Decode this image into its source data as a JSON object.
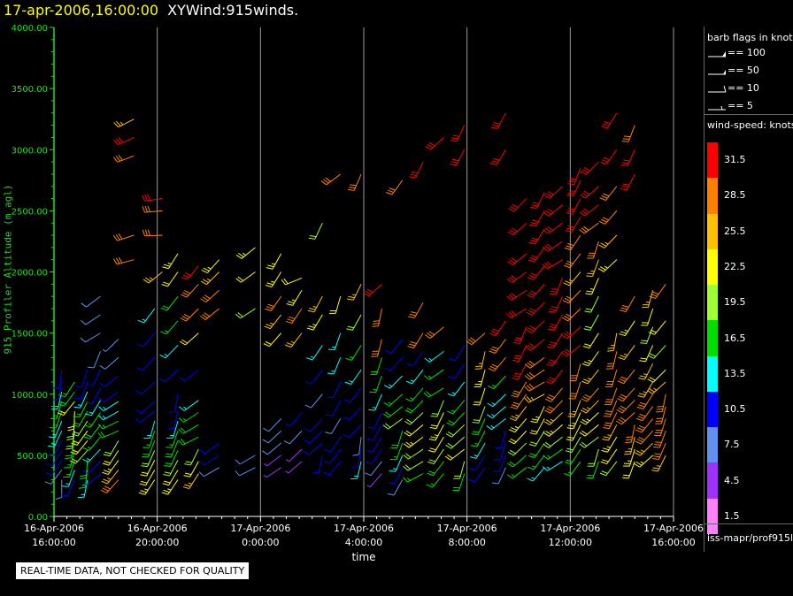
{
  "header": {
    "date": "17-apr-2006,16:00:00",
    "name": "XYWind:915winds."
  },
  "legend": {
    "flags_title": "barb flags in knots",
    "flags": [
      "== 100",
      "== 50",
      "== 10",
      "== 5"
    ],
    "speed_title": "wind-speed: knots",
    "speed_bins": [
      {
        "label": "31.5",
        "color": "#ff0000"
      },
      {
        "label": "28.5",
        "color": "#ff8000"
      },
      {
        "label": "25.5",
        "color": "#ffc000"
      },
      {
        "label": "22.5",
        "color": "#ffff00"
      },
      {
        "label": "19.5",
        "color": "#a0ff30"
      },
      {
        "label": "16.5",
        "color": "#00e000"
      },
      {
        "label": "13.5",
        "color": "#00ffff"
      },
      {
        "label": "10.5",
        "color": "#0000ff"
      },
      {
        "label": "7.5",
        "color": "#6090f0"
      },
      {
        "label": "4.5",
        "color": "#a030ff"
      },
      {
        "label": "1.5",
        "color": "#ff80ff"
      }
    ],
    "source": "iss-mapr/prof915l"
  },
  "notice": "REAL-TIME DATA, NOT CHECKED FOR QUALITY",
  "chart_data": {
    "type": "scatter",
    "title": "17-apr-2006,16:00:00  XYWind:915winds.",
    "xlabel": "time",
    "ylabel": "915 Profiler Altitude (m agl)",
    "ylim": [
      0,
      4000
    ],
    "yticks": [
      "0.00",
      "500.00",
      "1000.00",
      "1500.00",
      "2000.00",
      "2500.00",
      "3000.00",
      "3500.00",
      "4000.00"
    ],
    "xticks": [
      {
        "h": 0,
        "l1": "16-Apr-2006",
        "l2": "16:00:00"
      },
      {
        "h": 4,
        "l1": "16-Apr-2006",
        "l2": "20:00:00"
      },
      {
        "h": 8,
        "l1": "17-Apr-2006",
        "l2": "0:00:00"
      },
      {
        "h": 12,
        "l1": "17-Apr-2006",
        "l2": "4:00:00"
      },
      {
        "h": 16,
        "l1": "17-Apr-2006",
        "l2": "8:00:00"
      },
      {
        "h": 20,
        "l1": "17-Apr-2006",
        "l2": "12:00:00"
      },
      {
        "h": 24,
        "l1": "17-Apr-2006",
        "l2": "16:00:00"
      }
    ],
    "grid": "vertical",
    "series": [
      {
        "x": 0.3,
        "y": [
          300,
          380,
          460,
          540,
          620,
          700,
          780,
          860,
          940,
          1020,
          1100,
          1200
        ],
        "spd": [
          9,
          9,
          10,
          12,
          12,
          14,
          14,
          16,
          16,
          14,
          12,
          10
        ],
        "dir": 200
      },
      {
        "x": 0.8,
        "y": [
          300,
          380,
          460,
          540,
          620,
          700,
          780,
          860,
          940,
          1020,
          1100
        ],
        "spd": [
          12,
          14,
          16,
          16,
          18,
          20,
          20,
          22,
          22,
          18,
          16
        ],
        "dir": 200
      },
      {
        "x": 1.3,
        "y": [
          300,
          380,
          460,
          540,
          620,
          700,
          780,
          860,
          940,
          1020,
          1100,
          1200
        ],
        "spd": [
          14,
          16,
          18,
          20,
          22,
          22,
          20,
          18,
          16,
          14,
          12,
          10
        ],
        "dir": 205
      },
      {
        "x": 1.8,
        "y": [
          350,
          450,
          550,
          650,
          750,
          850,
          950,
          1050,
          1200,
          1350,
          1500,
          1650,
          1800
        ],
        "spd": [
          10,
          12,
          14,
          16,
          18,
          16,
          14,
          12,
          10,
          9,
          8,
          9,
          8
        ],
        "dir": 220
      },
      {
        "x": 2.5,
        "y": [
          300,
          380,
          460,
          540,
          620,
          700,
          780,
          860,
          940,
          1020,
          1150,
          1300,
          1450
        ],
        "spd": [
          28,
          26,
          24,
          22,
          20,
          18,
          17,
          15,
          13,
          11,
          10,
          8,
          7
        ],
        "dir": 230
      },
      {
        "x": 3.1,
        "y": [
          2100,
          2300,
          2950,
          3100,
          3250
        ],
        "spd": [
          28,
          29,
          30,
          31,
          27
        ],
        "dir": 240
      },
      {
        "x": 3.9,
        "y": [
          300,
          380,
          460,
          540,
          620,
          700,
          780,
          860,
          940,
          1100,
          1300,
          1500,
          1700
        ],
        "spd": [
          24,
          22,
          22,
          20,
          18,
          16,
          14,
          12,
          10,
          10,
          11,
          12,
          13
        ],
        "dir": 215
      },
      {
        "x": 4.2,
        "y": [
          2000,
          2300,
          2500,
          2600
        ],
        "spd": [
          26,
          28,
          30,
          31
        ],
        "dir": 250
      },
      {
        "x": 4.8,
        "y": [
          300,
          380,
          460,
          540,
          620,
          700,
          780,
          860,
          1000,
          1200,
          1400,
          1600,
          1800,
          2000,
          2150
        ],
        "spd": [
          24,
          22,
          20,
          18,
          18,
          16,
          14,
          12,
          10,
          12,
          14,
          16,
          18,
          22,
          24
        ],
        "dir": 210
      },
      {
        "x": 5.6,
        "y": [
          350,
          450,
          550,
          650,
          750,
          850,
          950,
          1200,
          1500,
          1700,
          1900,
          2050
        ],
        "spd": [
          25,
          22,
          20,
          18,
          18,
          16,
          14,
          12,
          22,
          28,
          30,
          31
        ],
        "dir": 225
      },
      {
        "x": 6.4,
        "y": [
          400,
          500,
          600,
          1700,
          1850,
          2000,
          2100
        ],
        "spd": [
          9,
          10,
          12,
          30,
          30,
          26,
          24
        ],
        "dir": 230
      },
      {
        "x": 7.8,
        "y": [
          400,
          500,
          1700,
          2000,
          2200
        ],
        "spd": [
          8,
          9,
          20,
          22,
          23
        ],
        "dir": 250
      },
      {
        "x": 8.8,
        "y": [
          400,
          500,
          600,
          700,
          800,
          1500,
          1650,
          1800,
          2000,
          2150
        ],
        "spd": [
          5,
          6,
          9,
          9,
          8,
          22,
          26,
          28,
          24,
          23
        ],
        "dir": 220
      },
      {
        "x": 9.6,
        "y": [
          450,
          550,
          700,
          850,
          1500,
          1700,
          1850,
          1950
        ],
        "spd": [
          4,
          5,
          8,
          10,
          26,
          28,
          24,
          22
        ],
        "dir": 230
      },
      {
        "x": 10.4,
        "y": [
          500,
          600,
          700,
          800,
          1000,
          1200,
          1400,
          1650,
          1800,
          2400
        ],
        "spd": [
          10,
          11,
          12,
          10,
          9,
          12,
          14,
          24,
          27,
          20
        ],
        "dir": 210
      },
      {
        "x": 11.1,
        "y": [
          450,
          550,
          650,
          800,
          950,
          1100,
          1300,
          1500,
          1800,
          2800
        ],
        "spd": [
          12,
          11,
          10,
          9,
          10,
          12,
          13,
          14,
          22,
          28
        ],
        "dir": 215
      },
      {
        "x": 11.9,
        "y": [
          450,
          550,
          650,
          750,
          900,
          1050,
          1200,
          1400,
          1650,
          1900,
          2800
        ],
        "spd": [
          13,
          11,
          9,
          10,
          11,
          12,
          14,
          16,
          20,
          26,
          30
        ],
        "dir": 205
      },
      {
        "x": 12.7,
        "y": [
          350,
          450,
          550,
          650,
          750,
          850,
          1000,
          1150,
          1300,
          1450,
          1700,
          1900
        ],
        "spd": [
          5,
          8,
          11,
          12,
          10,
          12,
          14,
          16,
          18,
          28,
          30,
          31
        ],
        "dir": 210
      },
      {
        "x": 13.5,
        "y": [
          300,
          400,
          500,
          600,
          700,
          800,
          900,
          1000,
          1150,
          1300,
          1450,
          2750
        ],
        "spd": [
          9,
          11,
          14,
          16,
          18,
          20,
          18,
          16,
          14,
          11,
          10,
          30
        ],
        "dir": 215
      },
      {
        "x": 14.3,
        "y": [
          350,
          450,
          550,
          650,
          750,
          850,
          950,
          1050,
          1200,
          1350,
          1500,
          1750,
          2900
        ],
        "spd": [
          17,
          19,
          21,
          23,
          22,
          20,
          18,
          16,
          14,
          12,
          28,
          30,
          31
        ],
        "dir": 225
      },
      {
        "x": 15.1,
        "y": [
          350,
          450,
          550,
          650,
          750,
          850,
          950,
          1050,
          1200,
          1350,
          1550,
          3100
        ],
        "spd": [
          16,
          18,
          20,
          22,
          23,
          22,
          20,
          18,
          16,
          14,
          30,
          31
        ],
        "dir": 220
      },
      {
        "x": 15.9,
        "y": [
          350,
          450,
          550,
          650,
          750,
          850,
          950,
          1100,
          1250,
          1400,
          3000,
          3200
        ],
        "spd": [
          18,
          20,
          22,
          21,
          20,
          18,
          16,
          14,
          12,
          11,
          31,
          31
        ],
        "dir": 215
      },
      {
        "x": 16.7,
        "y": [
          400,
          500,
          600,
          700,
          800,
          900,
          1050,
          1200,
          1350,
          1500
        ],
        "spd": [
          10,
          12,
          14,
          16,
          18,
          20,
          22,
          24,
          26,
          28
        ],
        "dir": 210
      },
      {
        "x": 17.5,
        "y": [
          400,
          500,
          600,
          700,
          800,
          900,
          1000,
          1150,
          1300,
          1450,
          1600,
          3000,
          3300
        ],
        "spd": [
          8,
          10,
          11,
          12,
          13,
          14,
          15,
          16,
          28,
          30,
          31,
          31,
          31
        ],
        "dir": 215
      },
      {
        "x": 18.3,
        "y": [
          400,
          500,
          600,
          700,
          800,
          900,
          1000,
          1100,
          1250,
          1400,
          1550,
          1700,
          1850,
          2000,
          2150,
          2400,
          2600
        ],
        "spd": [
          16,
          18,
          20,
          22,
          24,
          26,
          28,
          30,
          31,
          31,
          31,
          31,
          31,
          31,
          31,
          31,
          31
        ],
        "dir": 220
      },
      {
        "x": 19.0,
        "y": [
          400,
          500,
          600,
          700,
          800,
          900,
          1000,
          1100,
          1200,
          1300,
          1450,
          1600,
          1750,
          1900,
          2050,
          2200,
          2350,
          2500,
          2650
        ],
        "spd": [
          14,
          16,
          18,
          20,
          22,
          24,
          26,
          28,
          29,
          30,
          31,
          31,
          31,
          31,
          31,
          31,
          31,
          31,
          31
        ],
        "dir": 225
      },
      {
        "x": 19.7,
        "y": [
          450,
          550,
          650,
          750,
          850,
          950,
          1050,
          1200,
          1350,
          1500,
          1650,
          1800,
          1950,
          2100,
          2250,
          2400,
          2550,
          2700
        ],
        "spd": [
          14,
          16,
          20,
          24,
          26,
          28,
          30,
          31,
          31,
          31,
          31,
          31,
          31,
          31,
          31,
          31,
          31,
          31
        ],
        "dir": 220
      },
      {
        "x": 20.4,
        "y": [
          450,
          550,
          650,
          750,
          850,
          950,
          1100,
          1250,
          1400,
          1550,
          1700,
          1850,
          2000,
          2150,
          2300,
          2450,
          2600,
          2750,
          2850
        ],
        "spd": [
          16,
          18,
          20,
          22,
          24,
          26,
          28,
          30,
          31,
          31,
          30,
          28,
          26,
          28,
          30,
          31,
          31,
          31,
          31
        ],
        "dir": 215
      },
      {
        "x": 21.1,
        "y": [
          450,
          550,
          650,
          750,
          850,
          950,
          1050,
          1200,
          1350,
          1500,
          1650,
          1800,
          1950,
          2100,
          2250,
          2400,
          2550,
          2700,
          2900
        ],
        "spd": [
          18,
          20,
          20,
          22,
          24,
          26,
          28,
          26,
          24,
          22,
          20,
          20,
          24,
          26,
          28,
          30,
          31,
          31,
          31
        ],
        "dir": 215
      },
      {
        "x": 21.8,
        "y": [
          450,
          550,
          650,
          750,
          850,
          950,
          1050,
          1200,
          1350,
          1500,
          2100,
          2300,
          2500,
          2700,
          3000,
          3300
        ],
        "spd": [
          20,
          22,
          24,
          26,
          28,
          29,
          30,
          30,
          28,
          26,
          24,
          26,
          28,
          30,
          31,
          31
        ],
        "dir": 210
      },
      {
        "x": 22.5,
        "y": [
          450,
          550,
          650,
          750,
          850,
          950,
          1050,
          1200,
          1400,
          1600,
          1800,
          2800,
          3000,
          3200
        ],
        "spd": [
          22,
          24,
          26,
          28,
          29,
          30,
          30,
          28,
          25,
          24,
          28,
          31,
          31,
          30
        ],
        "dir": 210
      },
      {
        "x": 23.2,
        "y": [
          500,
          600,
          700,
          800,
          900,
          1000,
          1100,
          1250,
          1400,
          1550,
          1700,
          1850
        ],
        "spd": [
          24,
          26,
          28,
          30,
          30,
          29,
          27,
          25,
          22,
          20,
          22,
          26
        ],
        "dir": 215
      },
      {
        "x": 23.7,
        "y": [
          500,
          600,
          700,
          800,
          900,
          1000,
          1100,
          1200,
          1400,
          1600,
          1900
        ],
        "spd": [
          26,
          28,
          29,
          30,
          30,
          28,
          26,
          22,
          20,
          22,
          28
        ],
        "dir": 210
      }
    ]
  }
}
